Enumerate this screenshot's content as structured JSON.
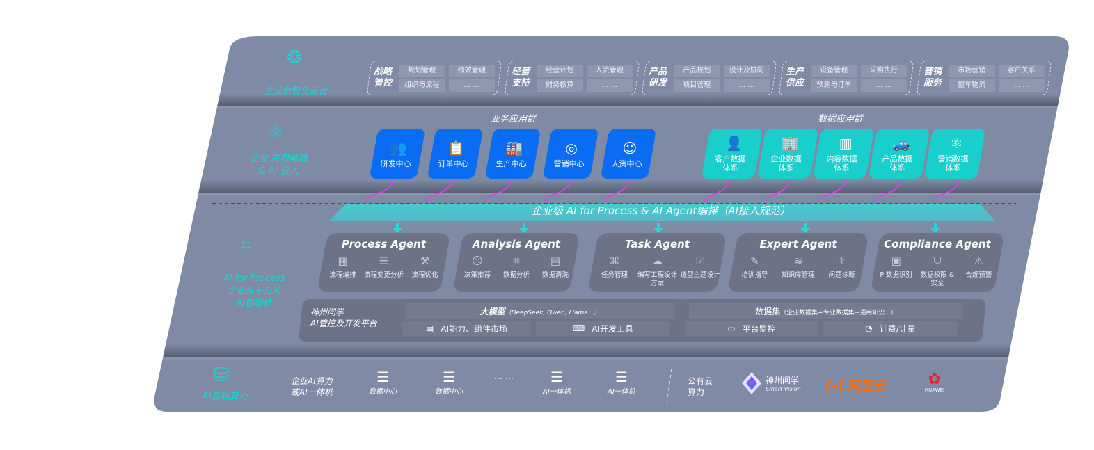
{
  "front": {
    "label": "企业数智化前台",
    "icon": "brain-icon",
    "groups": [
      {
        "title": [
          "战略",
          "管控"
        ],
        "items": [
          "规划管理",
          "绩效管理",
          "组织与流程",
          "… …"
        ]
      },
      {
        "title": [
          "经营",
          "支持"
        ],
        "items": [
          "经营计划",
          "人资管理",
          "财务核算",
          "… …"
        ]
      },
      {
        "title": [
          "产品",
          "研发"
        ],
        "items": [
          "产品规划",
          "设计及协同",
          "项目管理",
          "… …"
        ]
      },
      {
        "title": [
          "生产",
          "供应"
        ],
        "items": [
          "设备管理",
          "采购执行",
          "预测与订单",
          "… …"
        ]
      },
      {
        "title": [
          "营销",
          "服务"
        ],
        "items": [
          "市场营销",
          "客户关系",
          "整车物流",
          "… …"
        ]
      }
    ]
  },
  "apps": {
    "label": [
      "企业 应用解耦",
      "& AI 侵入"
    ],
    "icon": "molecule-icon",
    "business_header": "业务应用群",
    "business": [
      {
        "label": "研发中心",
        "icon": "team-icon"
      },
      {
        "label": "订单中心",
        "icon": "clipboard-icon"
      },
      {
        "label": "生产中心",
        "icon": "factory-icon"
      },
      {
        "label": "营销中心",
        "icon": "target-icon"
      },
      {
        "label": "人资中心",
        "icon": "person-icon"
      }
    ],
    "data_header": "数据应用群",
    "data": [
      {
        "label": [
          "客户数据",
          "体系"
        ],
        "icon": "user-icon"
      },
      {
        "label": [
          "企业数据",
          "体系"
        ],
        "icon": "building-icon"
      },
      {
        "label": [
          "内容数据",
          "体系"
        ],
        "icon": "books-icon"
      },
      {
        "label": [
          "产品数据",
          "体系"
        ],
        "icon": "car-icon"
      },
      {
        "label": [
          "营销数据",
          "体系"
        ],
        "icon": "atom-icon"
      }
    ]
  },
  "orchestration": "企业级 AI for Process & AI Agent编排（AI接入规范）",
  "ai_tier": {
    "label": [
      "AI for Process",
      "企业AI平台及",
      "AI智能体"
    ],
    "icon": "face-scan-icon",
    "agents": [
      {
        "title": "Process Agent",
        "items": [
          {
            "label": "流程编排",
            "icon": "chart-icon"
          },
          {
            "label": "流程变更分析",
            "icon": "list-icon"
          },
          {
            "label": "流程优化",
            "icon": "tools-icon"
          }
        ]
      },
      {
        "title": "Analysis Agent",
        "items": [
          {
            "label": "决策推荐",
            "icon": "head-icon"
          },
          {
            "label": "数据分析",
            "icon": "atom-icon"
          },
          {
            "label": "数据清洗",
            "icon": "doc-icon"
          }
        ]
      },
      {
        "title": "Task Agent",
        "items": [
          {
            "label": "任务管理",
            "icon": "network-icon"
          },
          {
            "label": "编写工程设计方案",
            "icon": "cloud-icon"
          },
          {
            "label": "造型主题设计",
            "icon": "checklist-icon"
          }
        ]
      },
      {
        "title": "Expert Agent",
        "items": [
          {
            "label": "培训指导",
            "icon": "edit-icon"
          },
          {
            "label": "知识库管理",
            "icon": "layers-icon"
          },
          {
            "label": "问题诊断",
            "icon": "diagnose-icon"
          }
        ]
      },
      {
        "title": "Compliance Agent",
        "items": [
          {
            "label": "PI数据识别",
            "icon": "id-icon"
          },
          {
            "label": "数据权限 & 安全",
            "icon": "shield-icon"
          },
          {
            "label": "合规预警",
            "icon": "alert-icon"
          }
        ]
      }
    ],
    "platform": {
      "title": [
        "神州问学",
        "AI管控及开发平台"
      ],
      "model_header": "大模型",
      "model_note": "（DeepSeek, Qwen, Llama...）",
      "dataset_header": "数据集",
      "dataset_note": "（企业数据集+专业数据集+通用知识...）",
      "cells": [
        "AI能力、组件市场",
        "AI开发工具",
        "平台监控",
        "计费/计量"
      ]
    }
  },
  "compute": {
    "label": "AI基础算力",
    "icon": "database-icon",
    "onprem_label": [
      "企业AI算力",
      "或AI一体机"
    ],
    "servers": [
      "数据中心",
      "数据中心",
      "AI一体机",
      "AI一体机"
    ],
    "ellipsis": "… …",
    "public_label": [
      "公有云",
      "算力"
    ],
    "vendors": {
      "shenzhou": "神州问学",
      "shenzhou_en": "Smart Vision",
      "aliyun": "阿里云",
      "huawei": "HUAWEI"
    }
  },
  "colors": {
    "panel": "#7f8ba5",
    "blue": "#0a6cf2",
    "teal": "#19cfcc",
    "accent": "#19d6d6",
    "arrow": "#e040e8",
    "aliyun": "#ff6a00",
    "huawei": "#e3262b"
  }
}
